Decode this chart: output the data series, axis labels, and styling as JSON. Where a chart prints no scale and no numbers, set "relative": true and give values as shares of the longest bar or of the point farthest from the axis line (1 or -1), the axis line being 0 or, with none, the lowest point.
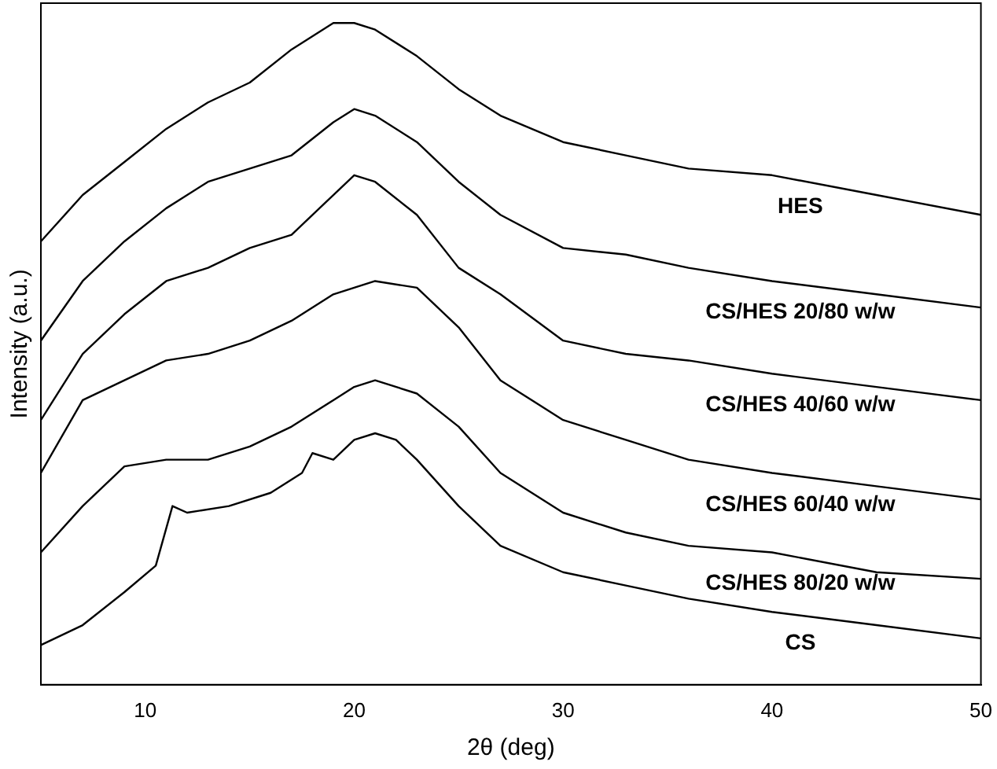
{
  "chart_data": {
    "type": "line",
    "relative": true,
    "xlabel": "2θ (deg)",
    "ylabel": "Intensity (a.u.)",
    "xlim": [
      5,
      50
    ],
    "xticks": [
      10,
      20,
      30,
      40,
      50
    ],
    "legend": false,
    "grid": false,
    "marker": "none",
    "x": [
      5,
      7,
      9,
      11,
      13,
      15,
      17,
      19,
      20,
      21,
      23,
      25,
      27,
      30,
      33,
      36,
      40,
      45,
      50
    ],
    "series": [
      {
        "name": "HES",
        "color": "#000000",
        "values": [
          0.67,
          0.74,
          0.79,
          0.84,
          0.88,
          0.91,
          0.96,
          1.0,
          1.0,
          0.99,
          0.95,
          0.9,
          0.86,
          0.82,
          0.8,
          0.78,
          0.77,
          0.74,
          0.71
        ]
      },
      {
        "name": "CS/HES 20/80 w/w",
        "color": "#000000",
        "values": [
          0.52,
          0.61,
          0.67,
          0.72,
          0.76,
          0.78,
          0.8,
          0.85,
          0.87,
          0.86,
          0.82,
          0.76,
          0.71,
          0.66,
          0.65,
          0.63,
          0.61,
          0.59,
          0.57
        ]
      },
      {
        "name": "CS/HES 40/60 w/w",
        "color": "#000000",
        "values": [
          0.4,
          0.5,
          0.56,
          0.61,
          0.63,
          0.66,
          0.68,
          0.74,
          0.77,
          0.76,
          0.71,
          0.63,
          0.59,
          0.52,
          0.5,
          0.49,
          0.47,
          0.45,
          0.43
        ]
      },
      {
        "name": "CS/HES 60/40 w/w",
        "color": "#000000",
        "values": [
          0.32,
          0.43,
          0.46,
          0.49,
          0.5,
          0.52,
          0.55,
          0.59,
          0.6,
          0.61,
          0.6,
          0.54,
          0.46,
          0.4,
          0.37,
          0.34,
          0.32,
          0.3,
          0.28
        ]
      },
      {
        "name": "CS/HES 80/20 w/w",
        "color": "#000000",
        "values": [
          0.2,
          0.27,
          0.33,
          0.34,
          0.34,
          0.36,
          0.39,
          0.43,
          0.45,
          0.46,
          0.44,
          0.39,
          0.32,
          0.26,
          0.23,
          0.21,
          0.2,
          0.17,
          0.16
        ]
      },
      {
        "name": "CS",
        "color": "#000000",
        "x": [
          5,
          7,
          9,
          10.5,
          11.3,
          12,
          14,
          16,
          17.5,
          18,
          19,
          20,
          21,
          22,
          23,
          25,
          27,
          30,
          33,
          36,
          40,
          45,
          50
        ],
        "values": [
          0.06,
          0.09,
          0.14,
          0.18,
          0.27,
          0.26,
          0.27,
          0.29,
          0.32,
          0.35,
          0.34,
          0.37,
          0.38,
          0.37,
          0.34,
          0.27,
          0.21,
          0.17,
          0.15,
          0.13,
          0.11,
          0.09,
          0.07
        ]
      }
    ]
  }
}
